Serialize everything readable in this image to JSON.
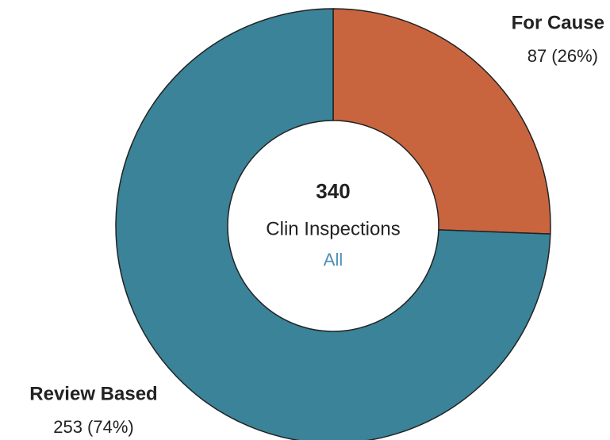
{
  "chart_data": {
    "type": "donut",
    "categories": [
      "For Cause",
      "Review Based"
    ],
    "values": [
      87,
      253
    ],
    "value_labels": [
      "87 (26%)",
      "253 (74%)"
    ],
    "colors": [
      "#c8653f",
      "#3a8399"
    ],
    "center_value": 340,
    "center_label": "Clin Inspections",
    "center_sublabel": "All"
  }
}
